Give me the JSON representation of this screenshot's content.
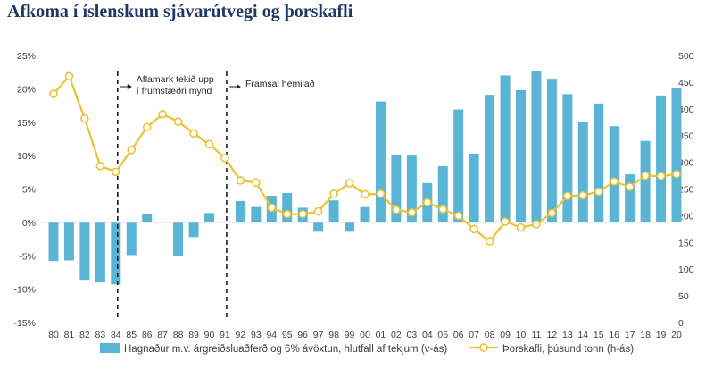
{
  "title": "Afkoma í íslenskum sjávarútvegi og þorskafli",
  "chart_data": {
    "type": "bar+line",
    "categories": [
      "80",
      "81",
      "82",
      "83",
      "84",
      "85",
      "86",
      "87",
      "88",
      "89",
      "90",
      "91",
      "92",
      "93",
      "94",
      "95",
      "96",
      "97",
      "98",
      "99",
      "00",
      "01",
      "02",
      "03",
      "04",
      "05",
      "06",
      "07",
      "08",
      "09",
      "10",
      "11",
      "12",
      "13",
      "14",
      "15",
      "16",
      "17",
      "18",
      "19",
      "20"
    ],
    "series": [
      {
        "name": "Hagnaður m.v. árgreiðsluaðferð og 6% ávöxtun, hlutfall af tekjum (v-ás)",
        "type": "bar",
        "axis": "left",
        "color": "#5ab4d6",
        "values": [
          -5.8,
          -5.7,
          -8.6,
          -9.0,
          -9.3,
          -4.9,
          1.3,
          0,
          -5.1,
          -2.2,
          1.4,
          0,
          3.2,
          2.3,
          4.0,
          4.4,
          2.2,
          -1.4,
          3.3,
          -1.4,
          2.3,
          18.1,
          10.1,
          10.0,
          5.9,
          8.4,
          16.9,
          10.3,
          19.1,
          22.0,
          19.8,
          22.6,
          21.5,
          19.2,
          15.1,
          17.8,
          14.4,
          7.2,
          12.2,
          19.0,
          20.1
        ]
      },
      {
        "name": "Þorskafli, þúsund tonn  (h-ás)",
        "type": "line",
        "axis": "right",
        "color": "#e9c232",
        "values": [
          428,
          461,
          382,
          293,
          282,
          323,
          366,
          390,
          376,
          354,
          334,
          308,
          266,
          262,
          215,
          203,
          203,
          208,
          241,
          261,
          240,
          241,
          211,
          206,
          225,
          212,
          200,
          175,
          152,
          189,
          178,
          184,
          205,
          237,
          238,
          245,
          264,
          254,
          275,
          274,
          278
        ]
      }
    ],
    "left_axis": {
      "min": -15,
      "max": 25,
      "ticks": [
        "-15%",
        "-10%",
        "-5%",
        "0%",
        "5%",
        "10%",
        "15%",
        "20%",
        "25%"
      ]
    },
    "right_axis": {
      "min": 0,
      "max": 500,
      "ticks": [
        "0",
        "50",
        "100",
        "150",
        "200",
        "250",
        "300",
        "350",
        "400",
        "450",
        "500"
      ]
    },
    "annotations": [
      {
        "at": "84",
        "text": [
          "Aflamark tekið upp",
          "í frumstæðri mynd"
        ]
      },
      {
        "at": "91",
        "text": [
          "Framsal hemilað"
        ]
      }
    ],
    "legend_position": "bottom",
    "grid": false
  }
}
